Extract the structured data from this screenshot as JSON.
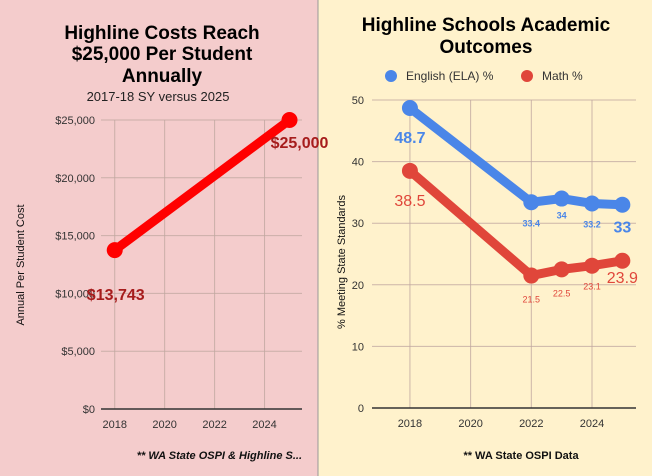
{
  "chart_data": [
    {
      "type": "line",
      "title": [
        "Highline Costs Reach",
        "$25,000 Per Student",
        "Annually"
      ],
      "subtitle": "2017-18 SY versus 2025",
      "ylabel": "Annual Per Student Cost",
      "xlabel": "",
      "source_note": "** WA State OSPI & Highline S...",
      "background": "#f4cccc",
      "xlim": [
        2017.45,
        2025.5
      ],
      "ylim": [
        0,
        25000
      ],
      "x_ticks": [
        "2018",
        "2020",
        "2022",
        "2024"
      ],
      "y_ticks": [
        "$0",
        "$5,000",
        "$10,000",
        "$15,000",
        "$20,000",
        "$25,000"
      ],
      "grid": true,
      "series": [
        {
          "color": "#ff0000",
          "label_color": "#a61c1c",
          "x": [
            2018,
            2025
          ],
          "values": [
            13743,
            25000
          ],
          "labels": [
            "$13,743",
            "$25,000"
          ]
        }
      ]
    },
    {
      "type": "line",
      "title": [
        "Highline Schools Academic",
        "Outcomes"
      ],
      "ylabel": "% Meeting State Standards",
      "xlabel": "",
      "source_note": "** WA State OSPI Data",
      "background": "#fff2cc",
      "legend_position": "top",
      "xlim": [
        2016.75,
        2025.45
      ],
      "ylim": [
        0,
        50
      ],
      "x_ticks": [
        "2018",
        "2020",
        "2022",
        "2024"
      ],
      "y_ticks": [
        "0",
        "10",
        "20",
        "30",
        "40",
        "50"
      ],
      "grid": true,
      "series": [
        {
          "name": "English (ELA) %",
          "color": "#4a86e8",
          "x": [
            2018,
            2022,
            2023,
            2024,
            2025
          ],
          "values": [
            48.7,
            33.4,
            34,
            33.2,
            33
          ],
          "labels": [
            "48.7",
            "33.4",
            "34",
            "33.2",
            "33"
          ]
        },
        {
          "name": "Math %",
          "color": "#e0463a",
          "x": [
            2018,
            2022,
            2023,
            2024,
            2025
          ],
          "values": [
            38.5,
            21.5,
            22.5,
            23.1,
            23.9
          ],
          "labels": [
            "38.5",
            "21.5",
            "22.5",
            "23.1",
            "23.9"
          ]
        }
      ]
    }
  ]
}
